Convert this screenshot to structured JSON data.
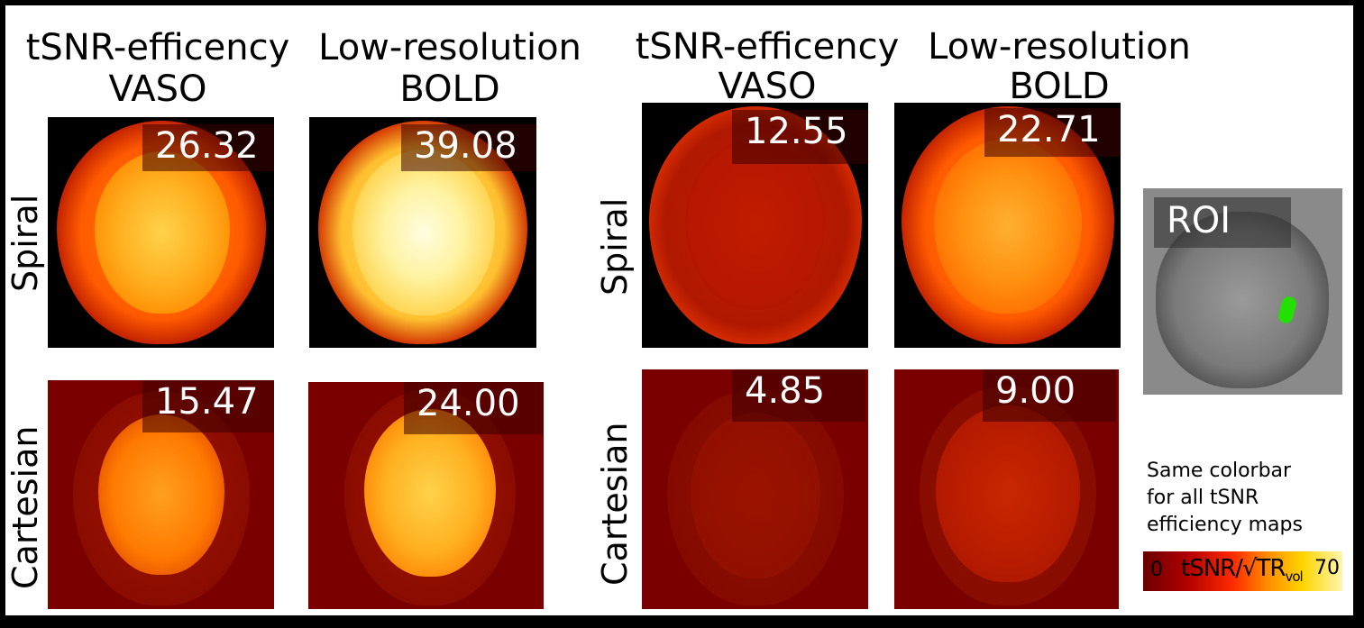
{
  "column_titles": {
    "left_vaso": [
      "tSNR-efficency",
      "VASO"
    ],
    "left_bold": [
      "Low-resolution",
      "BOLD"
    ],
    "right_vaso": [
      "tSNR-efficency",
      "VASO"
    ],
    "right_bold": [
      "Low-resolution",
      "BOLD"
    ]
  },
  "row_labels": {
    "left_spiral": "Spiral",
    "left_cartesian": "Cartesian",
    "right_spiral": "Spiral",
    "right_cartesian": "Cartesian"
  },
  "values": {
    "left_spiral_vaso": "26.32",
    "left_spiral_bold": "39.08",
    "left_cartesian_vaso": "15.47",
    "left_cartesian_bold": "24.00",
    "right_spiral_vaso": "12.55",
    "right_spiral_bold": "22.71",
    "right_cartesian_vaso": "4.85",
    "right_cartesian_bold": "9.00"
  },
  "roi": {
    "label": "ROI"
  },
  "note": [
    "Same colorbar",
    "for all tSNR",
    "efficiency maps"
  ],
  "colorbar": {
    "min": "0",
    "label_main": "tSNR/√TR",
    "label_sub": "vol",
    "max": "70"
  },
  "colors": {
    "frame": "#000000",
    "map_dark": "#7a0000",
    "roi_marker": "#22e000"
  }
}
